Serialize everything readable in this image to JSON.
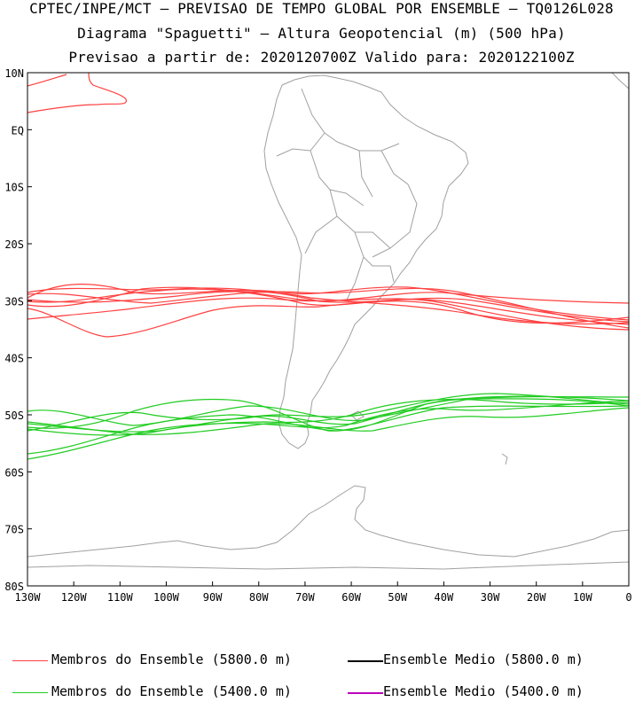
{
  "titles": {
    "line1": "CPTEC/INPE/MCT — PREVISAO DE TEMPO GLOBAL POR ENSEMBLE — TQ0126L028",
    "line2": "Diagrama \"Spaguetti\" — Altura Geopotencial (m) (500 hPa)",
    "line3": "Previsao a partir de: 2020120700Z  Valido para: 2020122100Z"
  },
  "axes": {
    "lat_labels": [
      "10N",
      "EQ",
      "10S",
      "20S",
      "30S",
      "40S",
      "50S",
      "60S",
      "70S",
      "80S"
    ],
    "lon_labels": [
      "130W",
      "120W",
      "110W",
      "100W",
      "90W",
      "80W",
      "70W",
      "60W",
      "50W",
      "40W",
      "30W",
      "20W",
      "10W",
      "0"
    ]
  },
  "legend": {
    "members_5800": "Membros do Ensemble (5800.0 m)",
    "mean_5800": "Ensemble Medio (5800.0 m)",
    "members_5400": "Membros do Ensemble (5400.0 m)",
    "mean_5400": "Ensemble Medio (5400.0 m)"
  },
  "colors": {
    "members_5800": "#ff4040",
    "members_5400": "#22cc22",
    "mean_5800": "#000000",
    "mean_5400": "#bb00bb",
    "coast": "#a0a0a0"
  }
}
